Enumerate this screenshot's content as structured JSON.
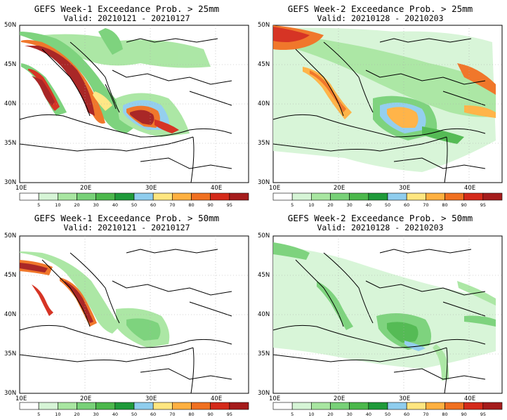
{
  "panels": [
    {
      "title": "GEFS Week-1 Exceedance Prob. > 25mm",
      "valid": "Valid: 20210121 - 20210127"
    },
    {
      "title": "GEFS Week-2 Exceedance Prob. > 25mm",
      "valid": "Valid: 20210128 - 20210203"
    },
    {
      "title": "GEFS Week-1 Exceedance Prob. > 50mm",
      "valid": "Valid: 20210121 - 20210127"
    },
    {
      "title": "GEFS Week-2 Exceedance Prob. > 50mm",
      "valid": "Valid: 20210128 - 20210203"
    }
  ],
  "map": {
    "lat_labels": [
      "50N",
      "45N",
      "40N",
      "35N",
      "30N"
    ],
    "lon_labels": [
      "10E",
      "20E",
      "30E",
      "40E"
    ],
    "lon_range": [
      10,
      45
    ],
    "lat_range": [
      30,
      50
    ]
  },
  "colorbar": {
    "levels": [
      "5",
      "10",
      "20",
      "30",
      "40",
      "50",
      "60",
      "70",
      "80",
      "90",
      "95"
    ],
    "colors": [
      "#ffffff",
      "#d6f5d6",
      "#a8e6a1",
      "#78d178",
      "#4cb84c",
      "#1f9a3a",
      "#8fcdee",
      "#ffe680",
      "#ffb040",
      "#f07020",
      "#d42a1a",
      "#a51c1c"
    ]
  }
}
